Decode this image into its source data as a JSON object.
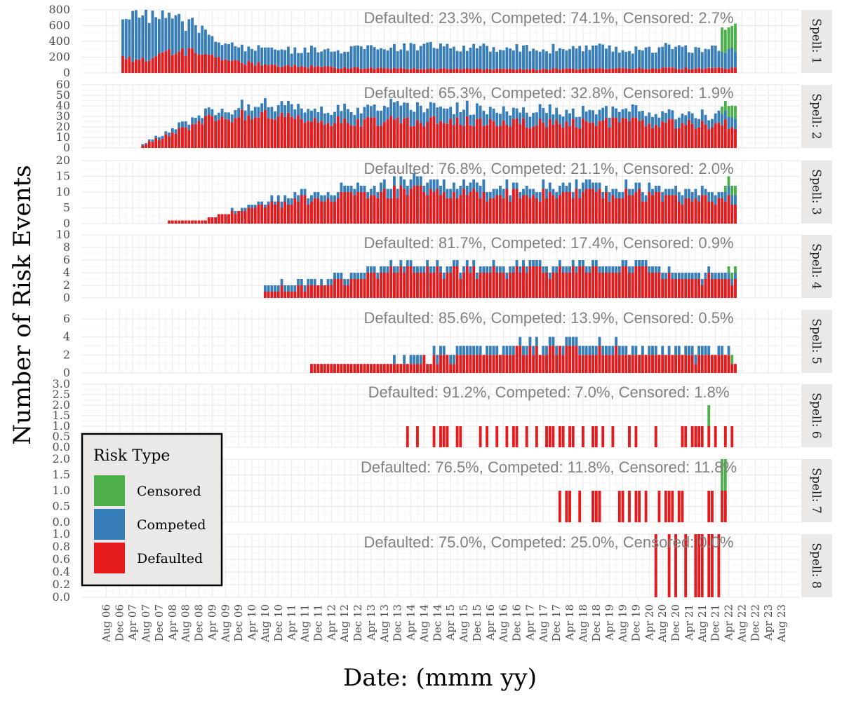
{
  "chart_data": {
    "type": "bar",
    "stacked": true,
    "xlabel": "Date: (mmm yy)",
    "ylabel": "Number of Risk Events",
    "x_ticks": [
      "Aug 06",
      "Dec 06",
      "Apr 07",
      "Aug 07",
      "Dec 07",
      "Apr 08",
      "Aug 08",
      "Dec 08",
      "Apr 09",
      "Aug 09",
      "Dec 09",
      "Apr 10",
      "Aug 10",
      "Dec 10",
      "Apr 11",
      "Aug 11",
      "Dec 11",
      "Apr 12",
      "Aug 12",
      "Dec 12",
      "Apr 13",
      "Aug 13",
      "Dec 13",
      "Apr 14",
      "Aug 14",
      "Dec 14",
      "Apr 15",
      "Aug 15",
      "Dec 15",
      "Apr 16",
      "Aug 16",
      "Dec 16",
      "Apr 17",
      "Aug 17",
      "Dec 17",
      "Apr 18",
      "Aug 18",
      "Dec 18",
      "Apr 19",
      "Aug 19",
      "Dec 19",
      "Apr 20",
      "Aug 20",
      "Dec 20",
      "Apr 21",
      "Aug 21",
      "Dec 21",
      "Apr 22",
      "Aug 22",
      "Dec 22",
      "Apr 23",
      "Aug 23"
    ],
    "legend": {
      "title": "Risk Type",
      "position": "bottom-left inside",
      "entries": [
        {
          "name": "Censored",
          "color": "#4daf4a"
        },
        {
          "name": "Competed",
          "color": "#377eb8"
        },
        {
          "name": "Defaulted",
          "color": "#e41a1c"
        }
      ]
    },
    "grid": true,
    "panels": [
      {
        "strip": "Spell: 1",
        "annotation": "Defaulted: 23.3%, Competed: 74.1%, Censored: 2.7%",
        "ylim": [
          0,
          800
        ],
        "y_ticks": [
          "0",
          "200",
          "400",
          "600",
          "800"
        ],
        "y_tick_values": [
          0,
          200,
          400,
          600,
          800
        ],
        "series": [
          {
            "name": "Defaulted",
            "start": "Jan 07",
            "end": "Jun 22",
            "keyframes": [
              [
                "Jan 07",
                190
              ],
              [
                "Jul 07",
                160
              ],
              [
                "Jan 08",
                230
              ],
              [
                "Jul 08",
                270
              ],
              [
                "Jan 09",
                250
              ],
              [
                "Jul 09",
                180
              ],
              [
                "Jan 10",
                130
              ],
              [
                "Jan 11",
                90
              ],
              [
                "Jan 12",
                70
              ],
              [
                "Jan 13",
                60
              ],
              [
                "Jan 15",
                50
              ],
              [
                "Jan 17",
                45
              ],
              [
                "Jan 19",
                50
              ],
              [
                "Jan 20",
                60
              ],
              [
                "Jun 22",
                55
              ]
            ]
          },
          {
            "name": "Competed",
            "start": "Jan 07",
            "end": "Jun 22",
            "keyframes": [
              [
                "Jan 07",
                520
              ],
              [
                "Jul 07",
                620
              ],
              [
                "Jan 08",
                460
              ],
              [
                "Jul 08",
                380
              ],
              [
                "Jan 09",
                330
              ],
              [
                "Jul 09",
                200
              ],
              [
                "Jan 10",
                200
              ],
              [
                "Jan 11",
                180
              ],
              [
                "Jan 12",
                210
              ],
              [
                "Jan 13",
                250
              ],
              [
                "Jan 14",
                270
              ],
              [
                "Jan 15",
                270
              ],
              [
                "Jan 17",
                260
              ],
              [
                "Jan 19",
                250
              ],
              [
                "Jan 20",
                230
              ],
              [
                "Jan 21",
                270
              ],
              [
                "Jun 22",
                220
              ]
            ]
          },
          {
            "name": "Censored",
            "start": "Feb 22",
            "end": "Jun 22",
            "keyframes": [
              [
                "Feb 22",
                250
              ],
              [
                "Jun 22",
                300
              ]
            ]
          }
        ]
      },
      {
        "strip": "Spell: 2",
        "annotation": "Defaulted: 65.3%, Competed: 32.8%, Censored: 1.9%",
        "ylim": [
          0,
          60
        ],
        "y_ticks": [
          "0",
          "10",
          "20",
          "30",
          "40",
          "50",
          "60"
        ],
        "y_tick_values": [
          0,
          10,
          20,
          30,
          40,
          50,
          60
        ],
        "series": [
          {
            "name": "Defaulted",
            "start": "Jul 07",
            "end": "Jun 22",
            "keyframes": [
              [
                "Jul 07",
                3
              ],
              [
                "Jan 08",
                10
              ],
              [
                "Jul 08",
                18
              ],
              [
                "Jan 09",
                25
              ],
              [
                "Jul 09",
                28
              ],
              [
                "Jan 10",
                30
              ],
              [
                "Jan 11",
                28
              ],
              [
                "Jan 12",
                25
              ],
              [
                "Jan 13",
                24
              ],
              [
                "Jan 14",
                25
              ],
              [
                "Jan 16",
                24
              ],
              [
                "Jan 18",
                22
              ],
              [
                "Jan 20",
                24
              ],
              [
                "Jan 21",
                22
              ],
              [
                "Jun 22",
                22
              ]
            ]
          },
          {
            "name": "Competed",
            "start": "Jul 07",
            "end": "Jun 22",
            "keyframes": [
              [
                "Jul 07",
                1
              ],
              [
                "Jan 08",
                3
              ],
              [
                "Jul 08",
                5
              ],
              [
                "Jan 09",
                6
              ],
              [
                "Jan 10",
                8
              ],
              [
                "Jan 11",
                10
              ],
              [
                "Jan 12",
                11
              ],
              [
                "Jan 13",
                12
              ],
              [
                "Jan 14",
                14
              ],
              [
                "Jan 16",
                12
              ],
              [
                "Jan 18",
                11
              ],
              [
                "Jan 20",
                10
              ],
              [
                "Jan 21",
                9
              ],
              [
                "Jun 22",
                10
              ]
            ]
          },
          {
            "name": "Censored",
            "start": "Feb 22",
            "end": "Jun 22",
            "keyframes": [
              [
                "Feb 22",
                6
              ],
              [
                "Jun 22",
                12
              ]
            ]
          }
        ]
      },
      {
        "strip": "Spell: 3",
        "annotation": "Defaulted: 76.8%, Competed: 21.1%, Censored: 2.0%",
        "ylim": [
          0,
          20
        ],
        "y_ticks": [
          "0",
          "5",
          "10",
          "15",
          "20"
        ],
        "y_tick_values": [
          0,
          5,
          10,
          15,
          20
        ],
        "series": [
          {
            "name": "Defaulted",
            "start": "Mar 08",
            "end": "Jun 22",
            "keyframes": [
              [
                "Mar 08",
                1
              ],
              [
                "Jan 09",
                1.5
              ],
              [
                "Jan 10",
                4
              ],
              [
                "Jan 11",
                6
              ],
              [
                "Jan 12",
                8
              ],
              [
                "Jan 13",
                9
              ],
              [
                "Jan 14",
                10
              ],
              [
                "Jan 16",
                9
              ],
              [
                "Jan 18",
                9
              ],
              [
                "Jan 20",
                9
              ],
              [
                "Jan 21",
                8
              ],
              [
                "Jun 22",
                7
              ]
            ]
          },
          {
            "name": "Competed",
            "start": "Mar 08",
            "end": "Jun 22",
            "keyframes": [
              [
                "Mar 08",
                0
              ],
              [
                "Jan 10",
                0.5
              ],
              [
                "Jan 11",
                1.5
              ],
              [
                "Jan 12",
                2
              ],
              [
                "Jan 14",
                3
              ],
              [
                "Jan 16",
                3
              ],
              [
                "Jan 18",
                2.5
              ],
              [
                "Jan 20",
                2.5
              ],
              [
                "Jun 22",
                2.5
              ]
            ]
          },
          {
            "name": "Censored",
            "start": "Mar 22",
            "end": "Jun 22",
            "keyframes": [
              [
                "Mar 22",
                2
              ],
              [
                "Jun 22",
                3
              ]
            ]
          }
        ]
      },
      {
        "strip": "Spell: 4",
        "annotation": "Defaulted: 81.7%, Competed: 17.4%, Censored: 0.9%",
        "ylim": [
          0,
          10
        ],
        "y_ticks": [
          "0",
          "2",
          "4",
          "6",
          "8",
          "10"
        ],
        "y_tick_values": [
          0,
          2,
          4,
          6,
          8,
          10
        ],
        "series": [
          {
            "name": "Defaulted",
            "start": "Aug 10",
            "end": "Jun 22",
            "keyframes": [
              [
                "Aug 10",
                1
              ],
              [
                "Jan 12",
                2
              ],
              [
                "Jan 13",
                3
              ],
              [
                "Jan 14",
                4
              ],
              [
                "Jan 16",
                4
              ],
              [
                "Jan 18",
                4
              ],
              [
                "Jan 20",
                4.5
              ],
              [
                "Jan 21",
                3
              ],
              [
                "Jun 22",
                3
              ]
            ]
          },
          {
            "name": "Competed",
            "start": "Aug 10",
            "end": "Jun 22",
            "keyframes": [
              [
                "Aug 10",
                0.8
              ],
              [
                "Jan 12",
                0.5
              ],
              [
                "Jan 14",
                1
              ],
              [
                "Jan 16",
                1
              ],
              [
                "Jan 18",
                1
              ],
              [
                "Jun 22",
                0.8
              ]
            ]
          },
          {
            "name": "Censored",
            "start": "Apr 22",
            "end": "Jun 22",
            "keyframes": [
              [
                "Apr 22",
                1
              ],
              [
                "Jun 22",
                1
              ]
            ]
          }
        ]
      },
      {
        "strip": "Spell: 5",
        "annotation": "Defaulted: 85.6%, Competed: 13.9%, Censored: 0.5%",
        "ylim": [
          0,
          7
        ],
        "y_ticks": [
          "0",
          "2",
          "4",
          "6"
        ],
        "y_tick_values": [
          0,
          2,
          4,
          6
        ],
        "series": [
          {
            "name": "Defaulted",
            "start": "Oct 11",
            "end": "Jun 22",
            "keyframes": [
              [
                "Oct 11",
                1
              ],
              [
                "Jan 14",
                1
              ],
              [
                "Jan 16",
                2
              ],
              [
                "Jan 18",
                2.5
              ],
              [
                "Jan 20",
                2
              ],
              [
                "Jun 22",
                1.5
              ]
            ]
          },
          {
            "name": "Competed",
            "start": "Oct 11",
            "end": "Jun 22",
            "keyframes": [
              [
                "Oct 11",
                0.3
              ],
              [
                "Jan 16",
                0.6
              ],
              [
                "Jan 19",
                0.6
              ],
              [
                "Jun 22",
                0.5
              ]
            ]
          },
          {
            "name": "Censored",
            "start": "May 22",
            "end": "May 22",
            "keyframes": [
              [
                "May 22",
                1
              ]
            ]
          }
        ]
      },
      {
        "strip": "Spell: 6",
        "annotation": "Defaulted: 91.2%, Competed: 7.0%, Censored: 1.8%",
        "ylim": [
          0,
          3
        ],
        "y_ticks": [
          "0.0",
          "0.5",
          "1.0",
          "1.5",
          "2.0",
          "2.5",
          "3.0"
        ],
        "y_tick_values": [
          0,
          0.5,
          1,
          1.5,
          2,
          2.5,
          3
        ],
        "series": [
          {
            "name": "Defaulted",
            "start": "Feb 14",
            "end": "Jun 22",
            "keyframes": [
              [
                "Feb 14",
                1
              ],
              [
                "Jun 22",
                1.2
              ]
            ]
          },
          {
            "name": "Competed",
            "start": "Feb 14",
            "end": "Jun 22",
            "keyframes": [
              [
                "Feb 14",
                0.1
              ],
              [
                "Jun 22",
                0.1
              ]
            ]
          },
          {
            "name": "Censored",
            "start": "Oct 21",
            "end": "Oct 21",
            "keyframes": [
              [
                "Oct 21",
                1
              ]
            ]
          }
        ]
      },
      {
        "strip": "Spell: 7",
        "annotation": "Defaulted: 76.5%, Competed: 11.8%, Censored: 11.8%",
        "ylim": [
          0,
          2
        ],
        "y_ticks": [
          "0.0",
          "0.5",
          "1.0",
          "1.5",
          "2.0"
        ],
        "y_tick_values": [
          0,
          0.5,
          1,
          1.5,
          2
        ],
        "series": [
          {
            "name": "Defaulted",
            "start": "Dec 17",
            "end": "Jun 22",
            "keyframes": [
              [
                "Dec 17",
                1
              ],
              [
                "Jun 22",
                1
              ]
            ]
          },
          {
            "name": "Competed",
            "start": "Dec 17",
            "end": "Jun 22",
            "keyframes": [
              [
                "Dec 17",
                0.1
              ],
              [
                "Jun 22",
                0.1
              ]
            ]
          },
          {
            "name": "Censored",
            "start": "Jan 22",
            "end": "Jun 22",
            "keyframes": [
              [
                "Jan 22",
                1
              ],
              [
                "Jun 22",
                1
              ]
            ]
          }
        ]
      },
      {
        "strip": "Spell: 8",
        "annotation": "Defaulted: 75.0%, Competed: 25.0%, Censored: 0.0%",
        "ylim": [
          0,
          1
        ],
        "y_ticks": [
          "0.0",
          "0.2",
          "0.4",
          "0.6",
          "0.8",
          "1.0"
        ],
        "y_tick_values": [
          0,
          0.2,
          0.4,
          0.6,
          0.8,
          1
        ],
        "series": [
          {
            "name": "Defaulted",
            "start": "Apr 20",
            "end": "Jun 22",
            "keyframes": [
              [
                "Apr 20",
                1
              ],
              [
                "Jun 22",
                1
              ]
            ]
          },
          {
            "name": "Competed",
            "start": "Apr 20",
            "end": "Jun 22",
            "keyframes": [
              [
                "Apr 20",
                0
              ],
              [
                "Jun 22",
                0
              ]
            ]
          },
          {
            "name": "Censored",
            "start": "Apr 20",
            "end": "Jun 22",
            "keyframes": [
              [
                "Apr 20",
                0
              ],
              [
                "Jun 22",
                0
              ]
            ]
          }
        ]
      }
    ]
  }
}
